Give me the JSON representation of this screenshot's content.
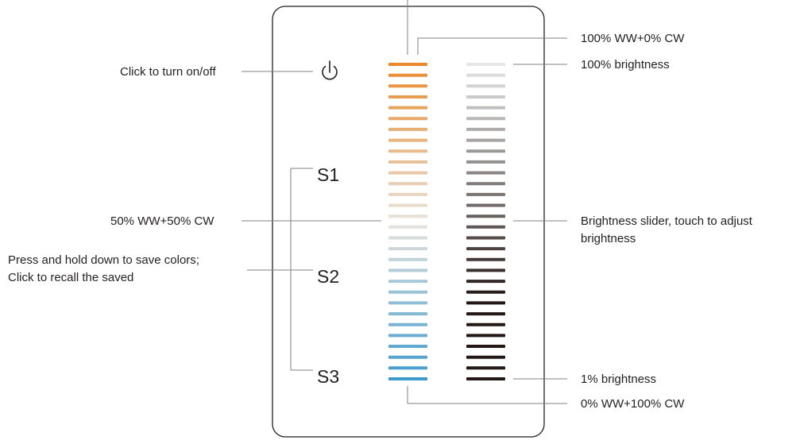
{
  "panel": {
    "buttons": {
      "s1": "S1",
      "s2": "S2",
      "s3": "S3"
    },
    "power_icon": "power-icon",
    "color_temperature_slider": {
      "segments": 30,
      "warm_color": "#e8892b",
      "cool_color": "#3d9acc"
    },
    "brightness_slider": {
      "segments": 30,
      "max_color": "#e6e6e6",
      "min_color": "#231815"
    }
  },
  "callouts": {
    "power": "Click to turn on/off",
    "ww100": "100% WW+0% CW",
    "brightness100": "100% brightness",
    "ww50": "50% WW+50% CW",
    "brightness_slider_line1": "Brightness slider, touch to adjust",
    "brightness_slider_line2": "brightness",
    "save_line1": "Press and hold down to save colors;",
    "save_line2": "Click to recall the saved",
    "brightness1": "1% brightness",
    "ww0": "0% WW+100% CW"
  }
}
